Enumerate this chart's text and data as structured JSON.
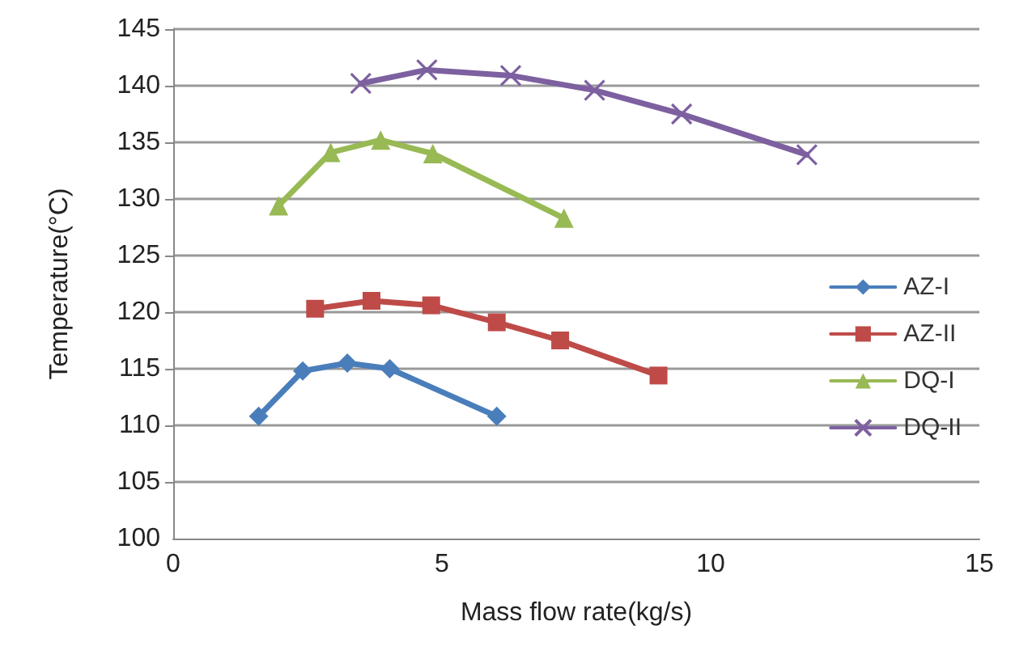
{
  "chart_data": {
    "type": "line",
    "xlabel": "Mass flow rate(kg/s)",
    "ylabel": "Temperature(°C)",
    "xlim": [
      0,
      15
    ],
    "xticks": [
      0,
      5,
      10,
      15
    ],
    "ylim": [
      100,
      145
    ],
    "yticks": [
      100,
      105,
      110,
      115,
      120,
      125,
      130,
      135,
      140,
      145
    ],
    "grid": "y",
    "legend": "right",
    "line_style": "solid",
    "series": [
      {
        "name": "AZ-I",
        "color": "#4a7ebb",
        "marker": "diamond",
        "x": [
          1.59,
          2.41,
          3.24,
          4.03,
          6.02
        ],
        "values": [
          110.8,
          114.8,
          115.5,
          115,
          110.8
        ]
      },
      {
        "name": "AZ-II",
        "color": "#be4b48",
        "marker": "square",
        "x": [
          2.64,
          3.69,
          4.8,
          6.02,
          7.2,
          9.03
        ],
        "values": [
          120.3,
          121,
          120.6,
          119.1,
          117.5,
          114.4
        ]
      },
      {
        "name": "DQ-I",
        "color": "#98b954",
        "marker": "triangle",
        "x": [
          1.96,
          2.93,
          3.86,
          4.83,
          7.27
        ],
        "values": [
          129.4,
          134.1,
          135.2,
          134,
          128.3
        ]
      },
      {
        "name": "DQ-II",
        "color": "#7d60a0",
        "marker": "cross",
        "x": [
          3.49,
          4.72,
          6.28,
          7.84,
          9.46,
          11.79
        ],
        "values": [
          140.2,
          141.4,
          140.9,
          139.6,
          137.5,
          133.9
        ]
      }
    ]
  }
}
